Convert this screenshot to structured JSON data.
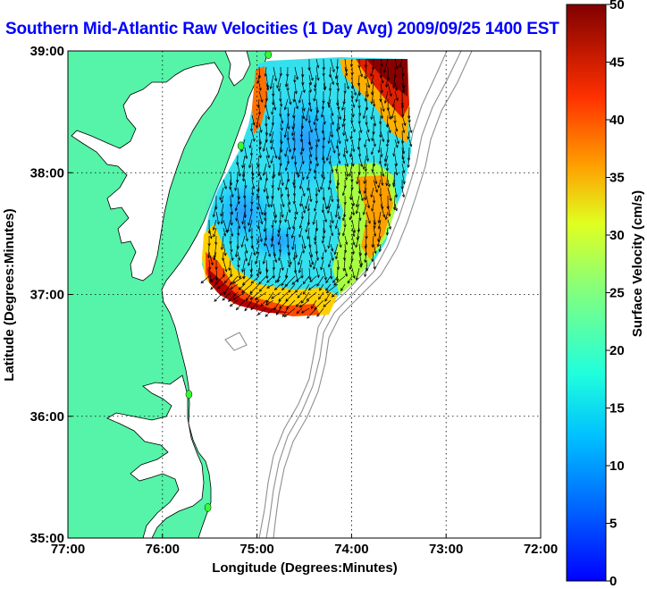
{
  "title": {
    "text": "Southern Mid-Atlantic Raw Velocities (1 Day Avg) 2009/09/25 1400 EST"
  },
  "map": {
    "xlabel": "Longitude (Degrees:Minutes)",
    "ylabel": "Latitude (Degrees:Minutes)",
    "lon_range": [
      -77,
      -72
    ],
    "lat_range": [
      35,
      39
    ],
    "x_ticks": [
      {
        "value": -77,
        "label": "77:00"
      },
      {
        "value": -76,
        "label": "76:00"
      },
      {
        "value": -75,
        "label": "75:00"
      },
      {
        "value": -74,
        "label": "74:00"
      },
      {
        "value": -73,
        "label": "73:00"
      },
      {
        "value": -72,
        "label": "72:00"
      }
    ],
    "y_ticks": [
      {
        "value": 39,
        "label": "39:00"
      },
      {
        "value": 38,
        "label": "38:00"
      },
      {
        "value": 37,
        "label": "37:00"
      },
      {
        "value": 36,
        "label": "36:00"
      },
      {
        "value": 35,
        "label": "35:00"
      }
    ],
    "grid": "dotted",
    "land_color": "#55f4a8",
    "water_color": "#ffffff",
    "station_color": "#33ff33",
    "stations": [
      {
        "lon": -74.88,
        "lat": 38.97
      },
      {
        "lon": -75.17,
        "lat": 38.22
      },
      {
        "lon": -75.72,
        "lat": 36.18
      },
      {
        "lon": -75.52,
        "lat": 35.25
      }
    ]
  },
  "colorbar": {
    "label": "Surface Velocity (cm/s)",
    "range": [
      0,
      50
    ],
    "ticks": [
      {
        "value": 0,
        "label": "0"
      },
      {
        "value": 5,
        "label": "5"
      },
      {
        "value": 10,
        "label": "10"
      },
      {
        "value": 15,
        "label": "15"
      },
      {
        "value": 20,
        "label": "20"
      },
      {
        "value": 25,
        "label": "25"
      },
      {
        "value": 30,
        "label": "30"
      },
      {
        "value": 35,
        "label": "35"
      },
      {
        "value": 40,
        "label": "40"
      },
      {
        "value": 45,
        "label": "45"
      },
      {
        "value": 50,
        "label": "50"
      }
    ],
    "colormap": "jet"
  }
}
